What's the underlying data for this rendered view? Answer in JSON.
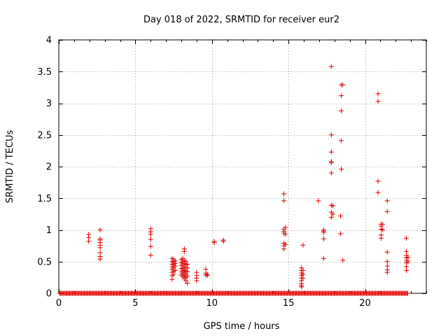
{
  "chart_data": {
    "type": "scatter",
    "title": "Day 018 of 2022, SRMTID for receiver eur2",
    "xlabel": "GPS time / hours",
    "ylabel": "SRMTID / TECUs",
    "xlim": [
      0,
      24
    ],
    "ylim": [
      0,
      4
    ],
    "xticks": [
      0,
      5,
      10,
      15,
      20
    ],
    "xtick_labels": [
      "0",
      "5",
      "10",
      "15",
      "20"
    ],
    "yticks": [
      0,
      0.5,
      1,
      1.5,
      2,
      2.5,
      3,
      3.5,
      4
    ],
    "ytick_labels": [
      "0",
      "0.5",
      "1",
      "1.5",
      "2",
      "2.5",
      "3",
      "3.5",
      "4"
    ],
    "grid": true,
    "marker": "+",
    "color": "#e00000",
    "baseline": {
      "y": 0,
      "x_start": 0.05,
      "x_end": 22.8,
      "step": 0.06
    },
    "series": [
      {
        "name": "SRMTID",
        "points": [
          [
            1.95,
            0.93
          ],
          [
            1.95,
            0.88
          ],
          [
            1.95,
            0.82
          ],
          [
            2.7,
            1.0
          ],
          [
            2.7,
            0.86
          ],
          [
            2.7,
            0.84
          ],
          [
            2.7,
            0.8
          ],
          [
            2.7,
            0.76
          ],
          [
            2.7,
            0.72
          ],
          [
            2.7,
            0.64
          ],
          [
            2.7,
            0.58
          ],
          [
            2.7,
            0.54
          ],
          [
            6.0,
            1.02
          ],
          [
            6.0,
            0.97
          ],
          [
            6.0,
            0.93
          ],
          [
            6.0,
            0.85
          ],
          [
            6.0,
            0.74
          ],
          [
            6.0,
            0.6
          ],
          [
            7.4,
            0.55
          ],
          [
            7.4,
            0.5
          ],
          [
            7.4,
            0.46
          ],
          [
            7.4,
            0.42
          ],
          [
            7.4,
            0.38
          ],
          [
            7.4,
            0.33
          ],
          [
            7.4,
            0.28
          ],
          [
            7.4,
            0.22
          ],
          [
            7.5,
            0.53
          ],
          [
            7.5,
            0.49
          ],
          [
            7.5,
            0.45
          ],
          [
            7.5,
            0.4
          ],
          [
            7.5,
            0.35
          ],
          [
            7.5,
            0.3
          ],
          [
            7.6,
            0.51
          ],
          [
            7.6,
            0.47
          ],
          [
            7.6,
            0.43
          ],
          [
            7.6,
            0.36
          ],
          [
            8.0,
            0.53
          ],
          [
            8.0,
            0.48
          ],
          [
            8.0,
            0.44
          ],
          [
            8.0,
            0.39
          ],
          [
            8.0,
            0.34
          ],
          [
            8.0,
            0.29
          ],
          [
            8.1,
            0.55
          ],
          [
            8.1,
            0.5
          ],
          [
            8.1,
            0.45
          ],
          [
            8.1,
            0.4
          ],
          [
            8.1,
            0.36
          ],
          [
            8.1,
            0.31
          ],
          [
            8.1,
            0.26
          ],
          [
            8.2,
            0.7
          ],
          [
            8.2,
            0.66
          ],
          [
            8.2,
            0.52
          ],
          [
            8.2,
            0.47
          ],
          [
            8.2,
            0.42
          ],
          [
            8.2,
            0.37
          ],
          [
            8.2,
            0.33
          ],
          [
            8.2,
            0.28
          ],
          [
            8.2,
            0.23
          ],
          [
            8.3,
            0.5
          ],
          [
            8.3,
            0.45
          ],
          [
            8.3,
            0.4
          ],
          [
            8.3,
            0.35
          ],
          [
            8.3,
            0.3
          ],
          [
            8.3,
            0.25
          ],
          [
            8.3,
            0.2
          ],
          [
            8.4,
            0.46
          ],
          [
            8.4,
            0.4
          ],
          [
            8.4,
            0.34
          ],
          [
            8.4,
            0.27
          ],
          [
            8.4,
            0.16
          ],
          [
            9.0,
            0.33
          ],
          [
            9.0,
            0.28
          ],
          [
            9.0,
            0.24
          ],
          [
            9.0,
            0.2
          ],
          [
            9.6,
            0.38
          ],
          [
            9.6,
            0.32
          ],
          [
            9.6,
            0.29
          ],
          [
            9.7,
            0.3
          ],
          [
            9.7,
            0.28
          ],
          [
            10.15,
            0.82
          ],
          [
            10.15,
            0.8
          ],
          [
            10.75,
            0.84
          ],
          [
            10.75,
            0.82
          ],
          [
            14.7,
            1.57
          ],
          [
            14.7,
            1.46
          ],
          [
            14.7,
            1.01
          ],
          [
            14.7,
            0.98
          ],
          [
            14.7,
            0.95
          ],
          [
            14.7,
            0.79
          ],
          [
            14.7,
            0.75
          ],
          [
            14.7,
            0.7
          ],
          [
            14.8,
            1.04
          ],
          [
            14.8,
            0.93
          ],
          [
            14.8,
            0.77
          ],
          [
            15.85,
            0.4
          ],
          [
            15.85,
            0.36
          ],
          [
            15.85,
            0.32
          ],
          [
            15.85,
            0.28
          ],
          [
            15.85,
            0.24
          ],
          [
            15.85,
            0.2
          ],
          [
            15.85,
            0.15
          ],
          [
            15.85,
            0.12
          ],
          [
            15.85,
            0.1
          ],
          [
            15.95,
            0.76
          ],
          [
            15.95,
            0.36
          ],
          [
            15.95,
            0.3
          ],
          [
            15.95,
            0.24
          ],
          [
            16.95,
            1.46
          ],
          [
            17.3,
            1.0
          ],
          [
            17.3,
            0.98
          ],
          [
            17.3,
            0.96
          ],
          [
            17.3,
            0.86
          ],
          [
            17.3,
            0.55
          ],
          [
            17.8,
            3.58
          ],
          [
            17.8,
            2.5
          ],
          [
            17.8,
            2.23
          ],
          [
            17.8,
            2.08
          ],
          [
            17.8,
            2.06
          ],
          [
            17.8,
            1.9
          ],
          [
            17.8,
            1.39
          ],
          [
            17.8,
            1.28
          ],
          [
            17.8,
            1.2
          ],
          [
            17.9,
            1.38
          ],
          [
            17.9,
            1.25
          ],
          [
            18.4,
            1.22
          ],
          [
            18.4,
            0.94
          ],
          [
            18.45,
            3.29
          ],
          [
            18.45,
            3.12
          ],
          [
            18.45,
            2.88
          ],
          [
            18.45,
            2.41
          ],
          [
            18.45,
            1.96
          ],
          [
            18.55,
            3.29
          ],
          [
            18.55,
            0.52
          ],
          [
            20.85,
            3.15
          ],
          [
            20.85,
            3.03
          ],
          [
            20.85,
            1.77
          ],
          [
            20.85,
            1.59
          ],
          [
            21.05,
            1.09
          ],
          [
            21.05,
            1.06
          ],
          [
            21.05,
            1.01
          ],
          [
            21.05,
            0.92
          ],
          [
            21.05,
            0.87
          ],
          [
            21.15,
            1.09
          ],
          [
            21.15,
            1.0
          ],
          [
            21.45,
            1.46
          ],
          [
            21.45,
            1.29
          ],
          [
            21.45,
            0.65
          ],
          [
            21.45,
            0.5
          ],
          [
            21.45,
            0.43
          ],
          [
            21.45,
            0.37
          ],
          [
            21.45,
            0.33
          ],
          [
            22.7,
            0.87
          ],
          [
            22.7,
            0.66
          ],
          [
            22.7,
            0.6
          ],
          [
            22.7,
            0.56
          ],
          [
            22.7,
            0.52
          ],
          [
            22.7,
            0.48
          ],
          [
            22.7,
            0.42
          ],
          [
            22.7,
            0.36
          ],
          [
            22.8,
            0.57
          ],
          [
            22.8,
            0.5
          ]
        ]
      }
    ]
  }
}
